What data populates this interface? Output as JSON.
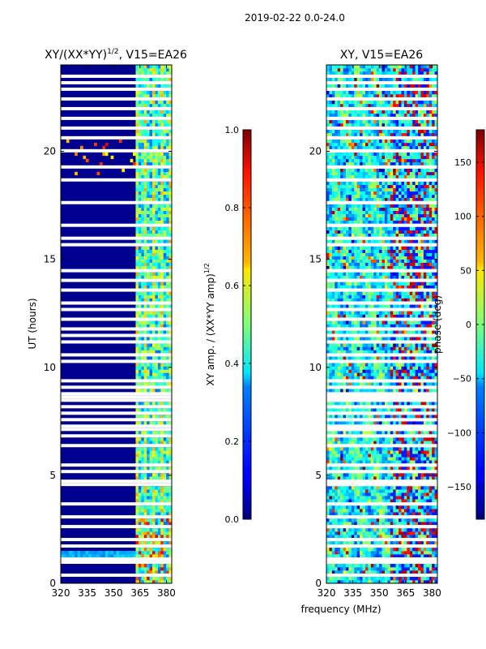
{
  "suptitle": "2019-02-22 0.0-24.0",
  "chart_data": [
    {
      "type": "heatmap",
      "title_prefix": "XY/(XX*YY)",
      "title_sup": "1/2",
      "title_suffix": ", V15=EA26",
      "ylabel": "UT (hours)",
      "xlabel": "",
      "xlim": [
        320,
        383
      ],
      "ylim": [
        0,
        24
      ],
      "xticks": [
        "320",
        "335",
        "350",
        "365",
        "380"
      ],
      "yticks": [
        "0",
        "5",
        "10",
        "15",
        "20"
      ],
      "colorbar": {
        "label_prefix": "XY amp. / (XX*YY amp)",
        "label_sup": "1/2",
        "range": [
          0.0,
          1.0
        ],
        "ticks": [
          "0.0",
          "0.2",
          "0.4",
          "0.6",
          "0.8",
          "1.0"
        ],
        "colormap": "jet"
      },
      "description_values": {
        "low_band_value": 0.05,
        "high_band_start_MHz": 361,
        "high_band_value": 0.4
      }
    },
    {
      "type": "heatmap",
      "title": "XY, V15=EA26",
      "ylabel": "",
      "xlabel": "frequency (MHz)",
      "xlim": [
        320,
        383
      ],
      "ylim": [
        0,
        24
      ],
      "xticks": [
        "320",
        "335",
        "350",
        "365",
        "380"
      ],
      "yticks": [
        "0",
        "5",
        "10",
        "15",
        "20"
      ],
      "colorbar": {
        "label": "phase (deg)",
        "range": [
          -180,
          180
        ],
        "ticks": [
          "−150",
          "−100",
          "−50",
          "0",
          "50",
          "100",
          "150"
        ],
        "colormap": "jet"
      }
    }
  ],
  "colors": {
    "background": "#ffffff",
    "jet_low": "#00008f",
    "jet_high": "#800000"
  }
}
